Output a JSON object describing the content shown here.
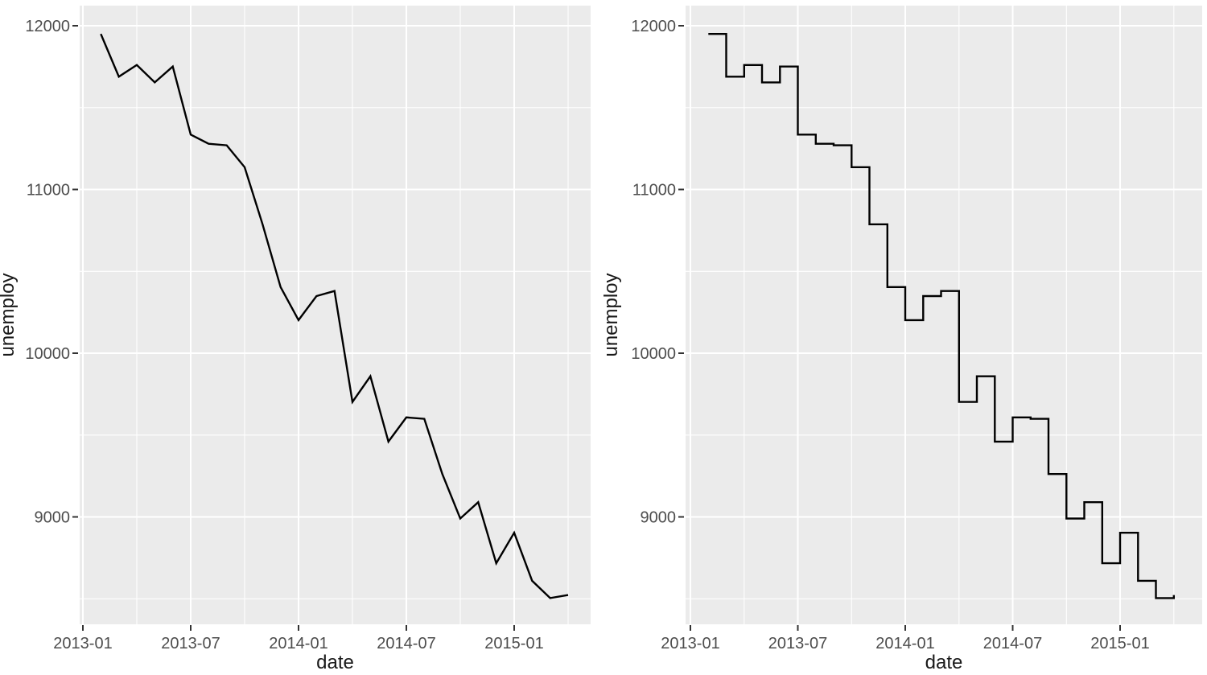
{
  "figure": {
    "description": "Two-panel figure: same monthly unemployment series drawn as a line chart (left) and a step chart (right)",
    "background": "#ffffff"
  },
  "colors": {
    "panel_bg": "#ebebeb",
    "gridline": "#ffffff",
    "line": "#000000",
    "tick_mark": "#333333",
    "tick_label": "#4d4d4d",
    "axis_title": "#1a1a1a"
  },
  "chart_data": [
    {
      "type": "line",
      "title": "",
      "xlabel": "date",
      "ylabel": "unemploy",
      "x": [
        "2013-02",
        "2013-03",
        "2013-04",
        "2013-05",
        "2013-06",
        "2013-07",
        "2013-08",
        "2013-09",
        "2013-10",
        "2013-11",
        "2013-12",
        "2014-01",
        "2014-02",
        "2014-03",
        "2014-04",
        "2014-05",
        "2014-06",
        "2014-07",
        "2014-08",
        "2014-09",
        "2014-10",
        "2014-11",
        "2014-12",
        "2015-01",
        "2015-02",
        "2015-03",
        "2015-04"
      ],
      "y": [
        11950,
        11689,
        11760,
        11654,
        11751,
        11335,
        11279,
        11270,
        11136,
        10787,
        10404,
        10202,
        10349,
        10380,
        9702,
        9859,
        9460,
        9608,
        9599,
        9262,
        8990,
        9090,
        8717,
        8903,
        8610,
        8504,
        8523
      ],
      "x_tick_labels": [
        "2013-01",
        "2013-07",
        "2014-01",
        "2014-07",
        "2015-01"
      ],
      "x_tick_months": [
        0,
        6,
        12,
        18,
        24
      ],
      "x_minor_months": [
        3,
        9,
        15,
        21,
        27
      ],
      "y_ticks": [
        12000,
        11000,
        10000,
        9000
      ],
      "y_minor_ticks": [
        11500,
        10500,
        9500,
        8500
      ],
      "ylim": [
        8340,
        12120
      ],
      "grid": "white major+minor on grey panel",
      "legend": "none"
    },
    {
      "type": "step",
      "title": "",
      "xlabel": "date",
      "ylabel": "unemploy",
      "x": [
        "2013-02",
        "2013-03",
        "2013-04",
        "2013-05",
        "2013-06",
        "2013-07",
        "2013-08",
        "2013-09",
        "2013-10",
        "2013-11",
        "2013-12",
        "2014-01",
        "2014-02",
        "2014-03",
        "2014-04",
        "2014-05",
        "2014-06",
        "2014-07",
        "2014-08",
        "2014-09",
        "2014-10",
        "2014-11",
        "2014-12",
        "2015-01",
        "2015-02",
        "2015-03",
        "2015-04"
      ],
      "y": [
        11950,
        11689,
        11760,
        11654,
        11751,
        11335,
        11279,
        11270,
        11136,
        10787,
        10404,
        10202,
        10349,
        10380,
        9702,
        9859,
        9460,
        9608,
        9599,
        9262,
        8990,
        9090,
        8717,
        8903,
        8610,
        8504,
        8523
      ],
      "x_tick_labels": [
        "2013-01",
        "2013-07",
        "2014-01",
        "2014-07",
        "2015-01"
      ],
      "x_tick_months": [
        0,
        6,
        12,
        18,
        24
      ],
      "x_minor_months": [
        3,
        9,
        15,
        21,
        27
      ],
      "y_ticks": [
        12000,
        11000,
        10000,
        9000
      ],
      "y_minor_ticks": [
        11500,
        10500,
        9500,
        8500
      ],
      "ylim": [
        8340,
        12120
      ],
      "grid": "white major+minor on grey panel",
      "legend": "none"
    }
  ]
}
